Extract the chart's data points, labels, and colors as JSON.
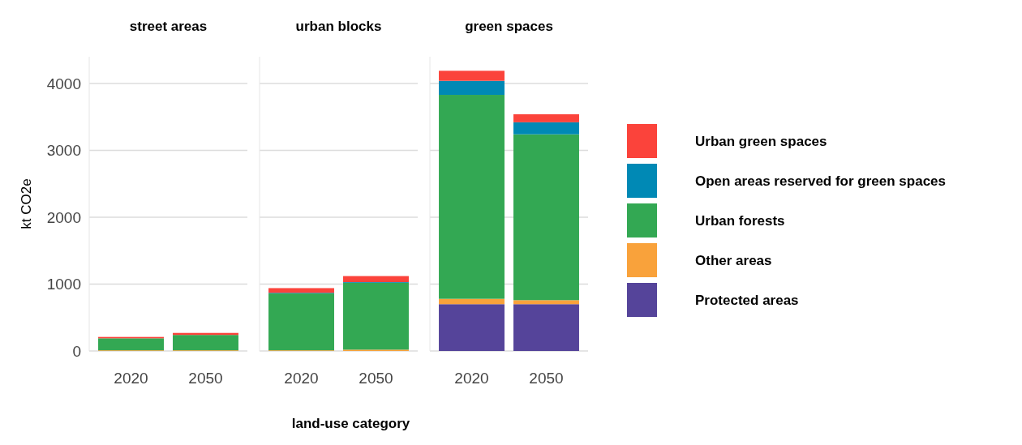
{
  "chart_data": [
    {
      "type": "bar",
      "title": "street areas",
      "ylabel": "kt CO2e",
      "categories": [
        "2020",
        "2050"
      ],
      "stacked": true,
      "grid": "y",
      "legend": false,
      "ylim": [
        0,
        4400
      ],
      "yticks": [
        0,
        1000,
        2000,
        3000,
        4000
      ],
      "series": [
        {
          "color": "#55449a",
          "values": [
            0,
            0
          ]
        },
        {
          "color": "#f9a23b",
          "values": [
            10,
            10
          ]
        },
        {
          "color": "#33a853",
          "values": [
            180,
            230
          ]
        },
        {
          "color": "#0089b5",
          "values": [
            0,
            0
          ]
        },
        {
          "color": "#fb433b",
          "values": [
            20,
            30
          ]
        }
      ]
    },
    {
      "type": "bar",
      "title": "urban blocks",
      "xlabel": "land-use category",
      "categories": [
        "2020",
        "2050"
      ],
      "stacked": true,
      "grid": "y",
      "legend": false,
      "tick_labels": "x",
      "ylim": [
        0,
        4400
      ],
      "yticks": [
        0,
        1000,
        2000,
        3000,
        4000
      ],
      "series": [
        {
          "color": "#55449a",
          "values": [
            0,
            0
          ]
        },
        {
          "color": "#f9a23b",
          "values": [
            10,
            20
          ]
        },
        {
          "color": "#33a853",
          "values": [
            850,
            1000
          ]
        },
        {
          "color": "#0089b5",
          "values": [
            10,
            10
          ]
        },
        {
          "color": "#fb433b",
          "values": [
            70,
            90
          ]
        }
      ]
    },
    {
      "type": "bar",
      "title": "green spaces",
      "categories": [
        "2020",
        "2050"
      ],
      "stacked": true,
      "grid": "y",
      "legend": "right",
      "tick_labels": "x",
      "ylim": [
        0,
        4400
      ],
      "yticks": [
        0,
        1000,
        2000,
        3000,
        4000
      ],
      "series": [
        {
          "name": "Protected areas",
          "color": "#55449a",
          "values": [
            700,
            700
          ]
        },
        {
          "name": "Other areas",
          "color": "#f9a23b",
          "values": [
            80,
            60
          ]
        },
        {
          "name": "Urban forests",
          "color": "#33a853",
          "values": [
            3050,
            2480
          ]
        },
        {
          "name": "Open areas reserved for green spaces",
          "color": "#0089b5",
          "values": [
            210,
            180
          ]
        },
        {
          "name": "Urban green spaces",
          "color": "#fb433b",
          "values": [
            150,
            120
          ]
        }
      ]
    }
  ]
}
